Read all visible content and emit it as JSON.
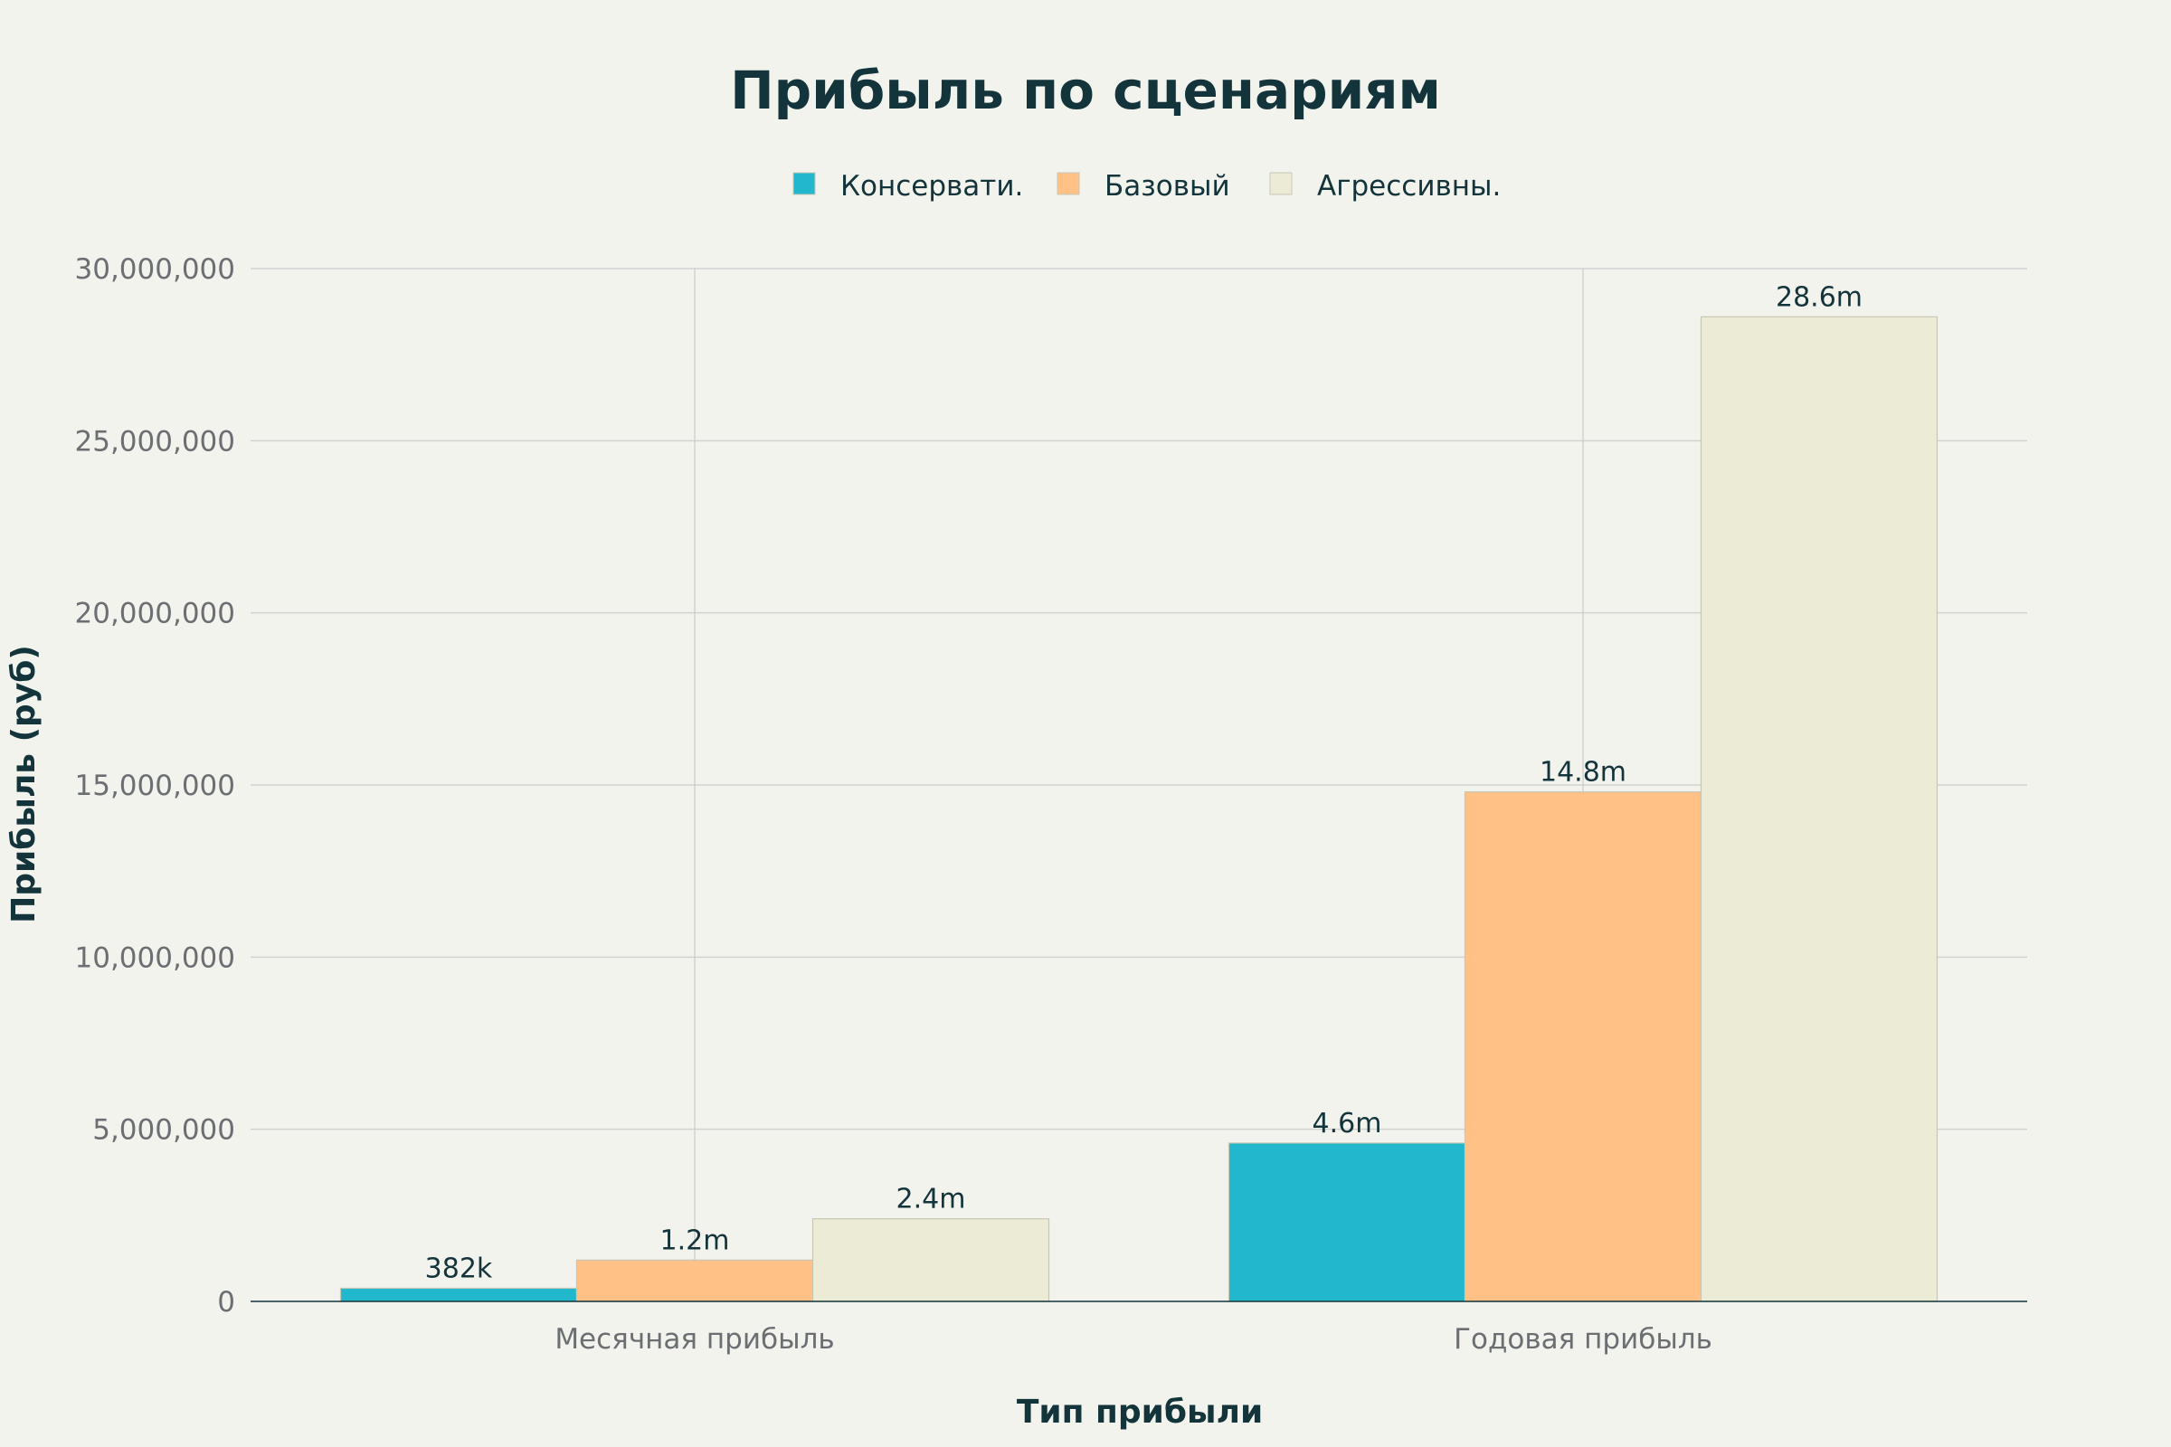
{
  "chart_data": {
    "type": "bar",
    "title": "Прибыль по сценариям",
    "xlabel": "Тип прибыли",
    "ylabel": "Прибыль (руб)",
    "categories": [
      "Месячная прибыль",
      "Годовая прибыль"
    ],
    "series": [
      {
        "name": "Консервати.",
        "color": "#21B8CD",
        "values": [
          382000,
          4600000
        ],
        "labels": [
          "382k",
          "4.6m"
        ]
      },
      {
        "name": "Базовый",
        "color": "#FFC185",
        "values": [
          1200000,
          14800000
        ],
        "labels": [
          "1.2m",
          "14.8m"
        ]
      },
      {
        "name": "Агрессивны.",
        "color": "#ECEBD5",
        "values": [
          2400000,
          28600000
        ],
        "labels": [
          "2.4m",
          "28.6m"
        ]
      }
    ],
    "ylim": [
      0,
      30000000
    ],
    "yticks": [
      0,
      5000000,
      10000000,
      15000000,
      20000000,
      25000000,
      30000000
    ],
    "ytick_labels": [
      "0",
      "5,000,000",
      "10,000,000",
      "15,000,000",
      "20,000,000",
      "25,000,000",
      "30,000,000"
    ],
    "grid": true,
    "legend_position": "top-center"
  }
}
